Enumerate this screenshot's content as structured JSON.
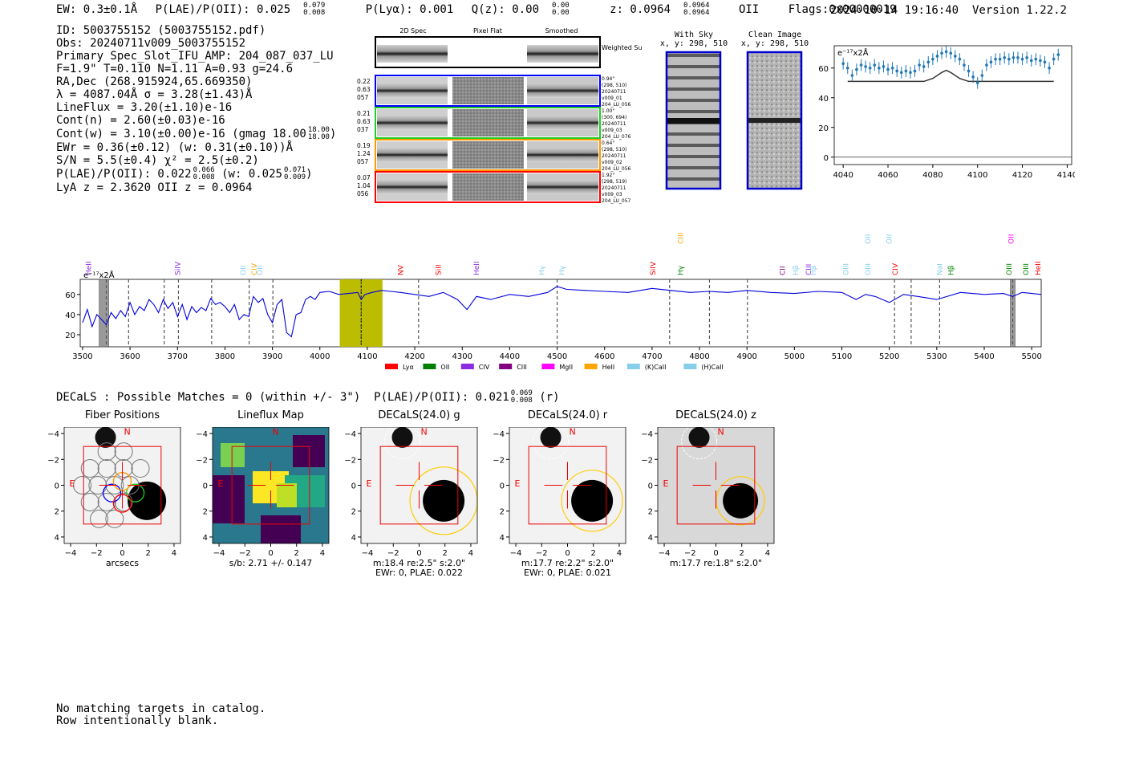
{
  "header": {
    "ew": "EW: 0.3±0.1Å",
    "plae_label": "P(LAE)/P(OII): 0.025",
    "plae_hi": "0.079",
    "plae_lo": "0.008",
    "plya": "P(Lyα): 0.001",
    "qz_label": "Q(z): 0.00",
    "qz_hi": "0.00",
    "qz_lo": "0.00",
    "z_label": "z: 0.0964",
    "z_hi": "0.0964",
    "z_lo": "0.0964",
    "z_line": "OII",
    "flags": "Flags:0x00000019",
    "timestamp": "2024-10-14 19:16:40",
    "version": "Version 1.22.2"
  },
  "info": {
    "id": "ID: 5003755152 (5003755152.pdf)",
    "obs": "Obs: 20240711v009_5003755152",
    "primary": "Primary Spec_Slot_IFU_AMP: 204_087_037_LU",
    "fit": "F=1.9\"  T=0.110  N=1.11  A=0.93  g=24.6",
    "radec": "RA,Dec (268.915924,65.669350)",
    "lambda": "λ = 4087.04Å  σ = 3.28(±1.43)Å",
    "lineflux": "LineFlux = 3.20(±1.10)e-16",
    "contn": "Cont(n) = 2.60(±0.03)e-16",
    "contw": "Cont(w) = 3.10(±0.00)e-16 (gmag 18.00",
    "contw_hi": "18.00",
    "contw_lo": "18.00",
    "contw_end": ")",
    "ewr": "EWr = 0.36(±0.12) (w: 0.31(±0.10))Å",
    "sn": "S/N = 5.5(±0.4)  χ² = 2.5(±0.2)",
    "plae": "P(LAE)/P(OII): 0.022",
    "plae_hi": "0.066",
    "plae_lo": "0.008",
    "plae_w": "(w: 0.025",
    "plae_w_hi": "0.071",
    "plae_w_lo": "0.009",
    "plae_w_end": ")",
    "lya": "LyA z = 2.3620  OII z = 0.0964"
  },
  "cutouts": {
    "col_2d": "2D Spec",
    "col_flat": "Pixel Flat",
    "col_smooth": "Smoothed",
    "weighted_sum": "Weighted Sum",
    "rows": [
      {
        "left": [
          "0.22",
          "0.63",
          "057"
        ],
        "right": [
          "0.94\"",
          "(298, 510)",
          "20240711",
          "v009_01",
          "204_LU_056"
        ],
        "color": "#0000ff"
      },
      {
        "left": [
          "0.21",
          "0.63",
          "037"
        ],
        "right": [
          "1.00\"",
          "(300, 694)",
          "20240711",
          "v009_03",
          "204_LU_076"
        ],
        "color": "#22cc22"
      },
      {
        "left": [
          "0.19",
          "1.24",
          "057"
        ],
        "right": [
          "0.64\"",
          "(298, 510)",
          "20240711",
          "v009_02",
          "204_LU_056"
        ],
        "color": "#ff9900"
      },
      {
        "left": [
          "0.07",
          "1.04",
          "056"
        ],
        "right": [
          "1.92\"",
          "(298, 519)",
          "20240711",
          "v009_03",
          "204_LU_057"
        ],
        "color": "#ff0000"
      }
    ]
  },
  "sky": {
    "with_sky_title": "With Sky",
    "with_sky_coords": "x, y: 298, 510",
    "clean_title": "Clean Image",
    "clean_coords": "x, y: 298, 510"
  },
  "zoom_plot": {
    "unit": "e⁻¹⁷x2Å",
    "x_ticks": [
      4040,
      4060,
      4080,
      4100,
      4120,
      4140
    ],
    "y_ticks": [
      0,
      20,
      40,
      60
    ]
  },
  "chart_data": [
    {
      "type": "scatter",
      "title": "",
      "ylabel": "e⁻¹⁷x2Å",
      "xlim": [
        4036,
        4142
      ],
      "ylim": [
        -5,
        75
      ],
      "x": [
        4040,
        4042,
        4044,
        4046,
        4048,
        4050,
        4052,
        4054,
        4056,
        4058,
        4060,
        4062,
        4064,
        4066,
        4068,
        4070,
        4072,
        4074,
        4076,
        4078,
        4080,
        4082,
        4084,
        4086,
        4088,
        4090,
        4092,
        4094,
        4096,
        4098,
        4100,
        4102,
        4104,
        4106,
        4108,
        4110,
        4112,
        4114,
        4116,
        4118,
        4120,
        4122,
        4124,
        4126,
        4128,
        4130,
        4132,
        4134,
        4136
      ],
      "y": [
        63,
        60,
        55,
        59,
        62,
        61,
        60,
        62,
        60,
        61,
        59,
        60,
        58,
        57,
        58,
        57,
        58,
        62,
        61,
        64,
        66,
        68,
        70,
        71,
        70,
        68,
        66,
        62,
        58,
        54,
        50,
        55,
        62,
        64,
        66,
        66,
        67,
        66,
        67,
        67,
        66,
        67,
        65,
        66,
        65,
        64,
        60,
        66,
        69
      ],
      "model_x": [
        4042,
        4076,
        4080,
        4084,
        4086,
        4088,
        4092,
        4096,
        4134
      ],
      "model_y": [
        51,
        51,
        53,
        57,
        58.5,
        57,
        53,
        51,
        51
      ]
    },
    {
      "type": "line",
      "title": "",
      "ylabel": "e⁻¹⁷x2Å",
      "xlim": [
        3495,
        5520
      ],
      "ylim": [
        8,
        75
      ],
      "x_ticks": [
        3500,
        3600,
        3700,
        3800,
        3900,
        4000,
        4100,
        4200,
        4300,
        4400,
        4500,
        4600,
        4700,
        4800,
        4900,
        5000,
        5100,
        5200,
        5300,
        5400,
        5500
      ],
      "y_ticks": [
        20,
        40,
        60
      ],
      "highlight_range": [
        4042,
        4132
      ],
      "line_center": 4087,
      "masked_ranges": [
        [
          3535,
          3555
        ],
        [
          5455,
          5465
        ]
      ],
      "dashed_lines": [
        3550,
        3597,
        3672,
        3702,
        3772,
        3851,
        3901,
        4087,
        4208,
        4500,
        4737,
        4821,
        4901,
        5211,
        5246,
        5306,
        5460
      ],
      "line_labels": [
        {
          "name": "HeII",
          "x": 3513,
          "color": "#8b2be2",
          "level": 0
        },
        {
          "name": "SiIV",
          "x": 3700,
          "color": "#8b2be2",
          "level": 0
        },
        {
          "name": "OII",
          "x": 3838,
          "color": "#87ceeb",
          "level": 0
        },
        {
          "name": "CIV",
          "x": 3862,
          "color": "#ffa500",
          "level": 0
        },
        {
          "name": "OII",
          "x": 3874,
          "color": "#87ceeb",
          "level": 0
        },
        {
          "name": "NV",
          "x": 4170,
          "color": "#ff0000",
          "level": 0
        },
        {
          "name": "SiII",
          "x": 4250,
          "color": "#ff0000",
          "level": 0
        },
        {
          "name": "HeII",
          "x": 4330,
          "color": "#8b2be2",
          "level": 0
        },
        {
          "name": "Hγ",
          "x": 4468,
          "color": "#87ceeb",
          "level": 0
        },
        {
          "name": "Hγ",
          "x": 4510,
          "color": "#87ceeb",
          "level": 0
        },
        {
          "name": "SiIV",
          "x": 4702,
          "color": "#ff0000",
          "level": 0
        },
        {
          "name": "CIII",
          "x": 4760,
          "color": "#ffa500",
          "level": 1
        },
        {
          "name": "Hγ",
          "x": 4760,
          "color": "#008000",
          "level": 0
        },
        {
          "name": "CII",
          "x": 4975,
          "color": "#800080",
          "level": 0
        },
        {
          "name": "Hβ",
          "x": 5003,
          "color": "#87ceeb",
          "level": 0
        },
        {
          "name": "CIII",
          "x": 5030,
          "color": "#8b2be2",
          "level": 0
        },
        {
          "name": "Hβ",
          "x": 5040,
          "color": "#87ceeb",
          "level": 0
        },
        {
          "name": "OIII",
          "x": 5108,
          "color": "#87ceeb",
          "level": 0
        },
        {
          "name": "OII",
          "x": 5155,
          "color": "#87ceeb",
          "level": 1
        },
        {
          "name": "OIII",
          "x": 5155,
          "color": "#87ceeb",
          "level": 0
        },
        {
          "name": "OII",
          "x": 5200,
          "color": "#87ceeb",
          "level": 1
        },
        {
          "name": "CIV",
          "x": 5212,
          "color": "#ff0000",
          "level": 0
        },
        {
          "name": "NaI",
          "x": 5306,
          "color": "#87ceeb",
          "level": 0
        },
        {
          "name": "Hβ",
          "x": 5330,
          "color": "#008000",
          "level": 0
        },
        {
          "name": "OII",
          "x": 5457,
          "color": "#ff00ff",
          "level": 1
        },
        {
          "name": "OIII",
          "x": 5452,
          "color": "#008000",
          "level": 0
        },
        {
          "name": "OIII",
          "x": 5488,
          "color": "#008000",
          "level": 0
        },
        {
          "name": "HeII",
          "x": 5513,
          "color": "#ff0000",
          "level": 0
        }
      ],
      "legend": [
        {
          "name": "Lyα",
          "color": "#ff0000"
        },
        {
          "name": "OII",
          "color": "#008000"
        },
        {
          "name": "CIV",
          "color": "#8b2be2"
        },
        {
          "name": "CIII",
          "color": "#800080"
        },
        {
          "name": "MgII",
          "color": "#ff00ff"
        },
        {
          "name": "HeII",
          "color": "#ffa500"
        },
        {
          "name": "(K)CaII",
          "color": "#87ceeb"
        },
        {
          "name": "(H)CaII",
          "color": "#87ceeb"
        }
      ],
      "spectrum_x": [
        3500,
        3510,
        3520,
        3530,
        3540,
        3550,
        3560,
        3570,
        3580,
        3590,
        3600,
        3610,
        3620,
        3630,
        3640,
        3650,
        3660,
        3670,
        3680,
        3690,
        3700,
        3710,
        3720,
        3730,
        3740,
        3750,
        3760,
        3770,
        3780,
        3790,
        3800,
        3810,
        3820,
        3830,
        3840,
        3850,
        3860,
        3870,
        3880,
        3890,
        3900,
        3910,
        3920,
        3930,
        3940,
        3950,
        3960,
        3970,
        3980,
        3990,
        4000,
        4020,
        4040,
        4060,
        4080,
        4087,
        4095,
        4110,
        4130,
        4150,
        4170,
        4200,
        4230,
        4260,
        4290,
        4310,
        4330,
        4360,
        4400,
        4440,
        4480,
        4500,
        4520,
        4560,
        4600,
        4650,
        4700,
        4740,
        4780,
        4820,
        4860,
        4900,
        4950,
        5000,
        5050,
        5100,
        5130,
        5150,
        5170,
        5200,
        5230,
        5260,
        5300,
        5350,
        5400,
        5440,
        5460,
        5480,
        5500,
        5520
      ],
      "spectrum_y": [
        32,
        45,
        28,
        40,
        35,
        30,
        42,
        36,
        44,
        38,
        52,
        40,
        48,
        44,
        55,
        50,
        42,
        55,
        46,
        52,
        38,
        50,
        35,
        48,
        42,
        47,
        44,
        56,
        50,
        52,
        48,
        42,
        50,
        35,
        40,
        38,
        58,
        52,
        56,
        40,
        32,
        50,
        55,
        22,
        18,
        40,
        42,
        55,
        58,
        55,
        62,
        63,
        60,
        61,
        62,
        55,
        60,
        62,
        64,
        63,
        62,
        60,
        58,
        62,
        55,
        45,
        58,
        55,
        60,
        58,
        62,
        68,
        65,
        64,
        63,
        62,
        66,
        64,
        62,
        63,
        62,
        64,
        62,
        61,
        63,
        62,
        55,
        60,
        58,
        52,
        60,
        58,
        55,
        62,
        60,
        61,
        58,
        62,
        61,
        60
      ]
    }
  ],
  "decals": {
    "matches": "DECaLS : Possible Matches = 0 (within +/- 3\")",
    "plae": "P(LAE)/P(OII): 0.021",
    "plae_hi": "0.069",
    "plae_lo": "0.008",
    "band": "(r)"
  },
  "panels": [
    {
      "title": "Fiber Positions",
      "caption1": "arcsecs",
      "caption2": ""
    },
    {
      "title": "Lineflux Map",
      "caption1": "s/b: 2.71 +/- 0.147",
      "caption2": ""
    },
    {
      "title": "DECaLS(24.0) g",
      "caption1": "m:18.4  re:2.5\"  s:2.0\"",
      "caption2": "EWr: 0, PLAE: 0.022"
    },
    {
      "title": "DECaLS(24.0) r",
      "caption1": "m:17.7  re:2.2\"  s:2.0\"",
      "caption2": "EWr: 0, PLAE: 0.021"
    },
    {
      "title": "DECaLS(24.0) z",
      "caption1": "m:17.7  re:1.8\"  s:2.0\"",
      "caption2": ""
    }
  ],
  "panel_axes": {
    "x_ticks": [
      "−4",
      "−2",
      "0",
      "2",
      "4"
    ],
    "y_ticks": [
      "4",
      "2",
      "0",
      "−2",
      "−4"
    ],
    "north": "N",
    "east": "E"
  },
  "footer": {
    "line1": "No matching targets in catalog.",
    "line2": "Row intentionally blank."
  }
}
